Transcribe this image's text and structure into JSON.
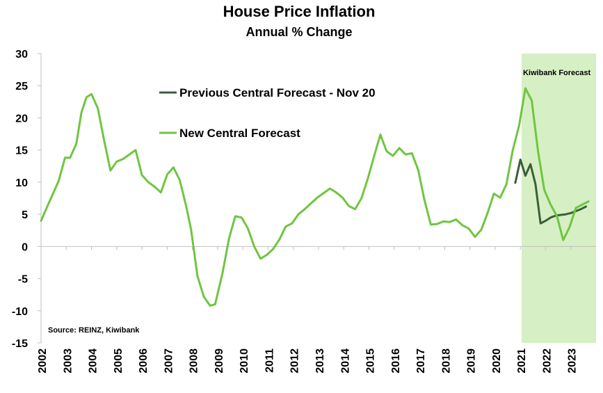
{
  "chart_data": {
    "type": "line",
    "title": "House Price Inflation",
    "subtitle": "Annual % Change",
    "ylim": [
      -15,
      30
    ],
    "y_ticks": [
      -15,
      -10,
      -5,
      0,
      5,
      10,
      15,
      20,
      25,
      30
    ],
    "xlim": [
      2002,
      2024
    ],
    "x_ticks": [
      "2002",
      "2003",
      "2004",
      "2005",
      "2006",
      "2007",
      "2008",
      "2009",
      "2010",
      "2011",
      "2012",
      "2013",
      "2014",
      "2015",
      "2016",
      "2017",
      "2018",
      "2019",
      "2020",
      "2021",
      "2022",
      "2023"
    ],
    "forecast_shade": {
      "x_start": 2021.05,
      "x_end": 2024,
      "label": "Kiwibank Forecast",
      "color": "#d6efc4"
    },
    "source": "Source: REINZ, Kiwibank",
    "series": [
      {
        "name": "Previous Central Forecast - Nov 20",
        "color": "#3a5e3a",
        "points": [
          [
            2020.8,
            9.9
          ],
          [
            2021.0,
            13.5
          ],
          [
            2021.2,
            11.0
          ],
          [
            2021.4,
            12.8
          ],
          [
            2021.6,
            9.7
          ],
          [
            2021.8,
            3.6
          ],
          [
            2022.0,
            4.0
          ],
          [
            2022.2,
            4.5
          ],
          [
            2022.4,
            4.8
          ],
          [
            2022.6,
            4.9
          ],
          [
            2022.8,
            5.0
          ],
          [
            2023.0,
            5.2
          ],
          [
            2023.2,
            5.5
          ],
          [
            2023.4,
            5.8
          ],
          [
            2023.6,
            6.2
          ]
        ]
      },
      {
        "name": "New Central Forecast",
        "color": "#6fc540",
        "points": [
          [
            2002.0,
            4.0
          ],
          [
            2002.2,
            5.8
          ],
          [
            2002.45,
            8.0
          ],
          [
            2002.7,
            10.2
          ],
          [
            2002.95,
            13.8
          ],
          [
            2003.15,
            13.8
          ],
          [
            2003.4,
            16.0
          ],
          [
            2003.6,
            20.8
          ],
          [
            2003.8,
            23.2
          ],
          [
            2004.0,
            23.7
          ],
          [
            2004.25,
            21.5
          ],
          [
            2004.5,
            16.5
          ],
          [
            2004.75,
            11.8
          ],
          [
            2005.0,
            13.2
          ],
          [
            2005.25,
            13.6
          ],
          [
            2005.5,
            14.3
          ],
          [
            2005.75,
            15.0
          ],
          [
            2006.0,
            11.1
          ],
          [
            2006.25,
            10.0
          ],
          [
            2006.5,
            9.3
          ],
          [
            2006.75,
            8.4
          ],
          [
            2007.0,
            11.2
          ],
          [
            2007.25,
            12.3
          ],
          [
            2007.5,
            10.3
          ],
          [
            2007.75,
            6.3
          ],
          [
            2007.95,
            2.6
          ],
          [
            2008.2,
            -4.6
          ],
          [
            2008.45,
            -7.8
          ],
          [
            2008.7,
            -9.2
          ],
          [
            2008.9,
            -9.0
          ],
          [
            2009.2,
            -4.0
          ],
          [
            2009.45,
            1.2
          ],
          [
            2009.7,
            4.7
          ],
          [
            2009.95,
            4.5
          ],
          [
            2010.2,
            2.8
          ],
          [
            2010.45,
            0.0
          ],
          [
            2010.7,
            -1.9
          ],
          [
            2010.95,
            -1.3
          ],
          [
            2011.2,
            -0.4
          ],
          [
            2011.45,
            1.1
          ],
          [
            2011.7,
            3.1
          ],
          [
            2011.95,
            3.6
          ],
          [
            2012.2,
            5.0
          ],
          [
            2012.45,
            5.8
          ],
          [
            2012.7,
            6.7
          ],
          [
            2012.95,
            7.6
          ],
          [
            2013.2,
            8.3
          ],
          [
            2013.45,
            9.0
          ],
          [
            2013.7,
            8.4
          ],
          [
            2013.95,
            7.6
          ],
          [
            2014.2,
            6.3
          ],
          [
            2014.45,
            5.8
          ],
          [
            2014.7,
            7.5
          ],
          [
            2014.95,
            10.5
          ],
          [
            2015.2,
            14.0
          ],
          [
            2015.45,
            17.4
          ],
          [
            2015.7,
            14.8
          ],
          [
            2015.95,
            14.1
          ],
          [
            2016.2,
            15.3
          ],
          [
            2016.45,
            14.3
          ],
          [
            2016.7,
            14.5
          ],
          [
            2016.95,
            11.9
          ],
          [
            2017.2,
            7.2
          ],
          [
            2017.45,
            3.4
          ],
          [
            2017.7,
            3.5
          ],
          [
            2017.95,
            3.9
          ],
          [
            2018.2,
            3.8
          ],
          [
            2018.45,
            4.2
          ],
          [
            2018.7,
            3.3
          ],
          [
            2018.95,
            2.8
          ],
          [
            2019.2,
            1.5
          ],
          [
            2019.45,
            2.6
          ],
          [
            2019.7,
            5.2
          ],
          [
            2019.95,
            8.2
          ],
          [
            2020.2,
            7.6
          ],
          [
            2020.45,
            9.7
          ],
          [
            2020.7,
            15.0
          ],
          [
            2020.95,
            18.8
          ],
          [
            2021.2,
            24.6
          ],
          [
            2021.45,
            22.7
          ],
          [
            2021.7,
            14.8
          ],
          [
            2021.95,
            8.8
          ],
          [
            2022.2,
            6.5
          ],
          [
            2022.45,
            4.7
          ],
          [
            2022.7,
            1.0
          ],
          [
            2022.95,
            3.0
          ],
          [
            2023.2,
            6.0
          ],
          [
            2023.45,
            6.5
          ],
          [
            2023.7,
            7.0
          ]
        ]
      }
    ]
  }
}
